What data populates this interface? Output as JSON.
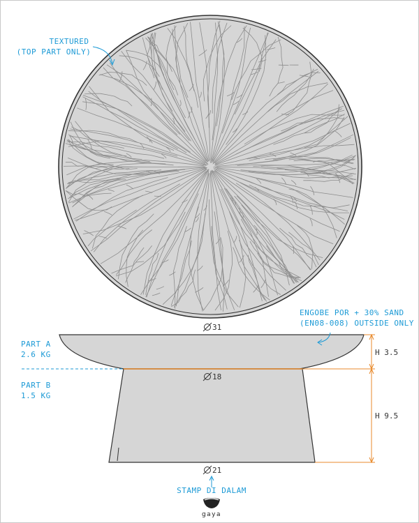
{
  "colors": {
    "annotation": "#1c9ad6",
    "dimension": "#e8892b",
    "fill": "#d6d6d6",
    "outline": "#333333",
    "texture": "#8c8c8c"
  },
  "notes": {
    "texture_line1": "TEXTURED",
    "texture_line2": "(TOP PART ONLY)",
    "engobe_line1": "ENGOBE POR + 30% SAND",
    "engobe_line2": "(EN08-008) OUTSIDE ONLY",
    "part_a_name": "PART A",
    "part_a_weight": "2.6 KG",
    "part_b_name": "PART B",
    "part_b_weight": "1.5 KG",
    "stamp": "STAMP DI DALAM"
  },
  "dimensions": {
    "top_diameter": "31",
    "mid_diameter": "18",
    "base_diameter": "21",
    "height_a": "H 3.5",
    "height_b": "H 9.5"
  },
  "logo": {
    "text": "gaya",
    "icon": "bowl-logo-icon"
  }
}
